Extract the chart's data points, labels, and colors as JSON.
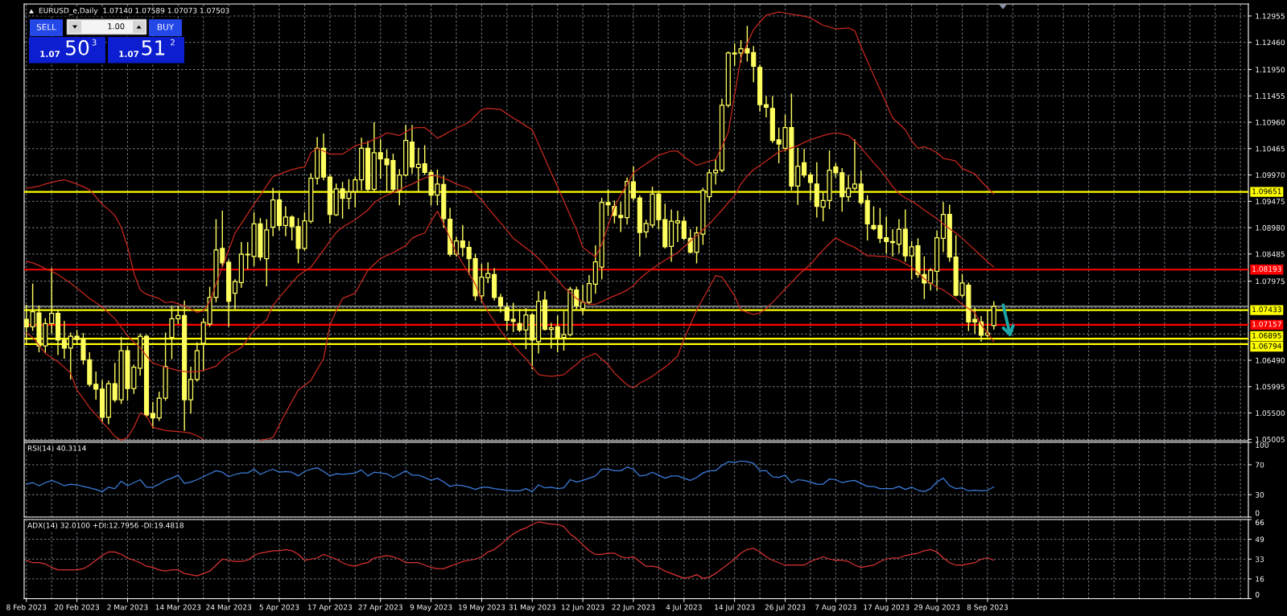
{
  "chart_data": [
    {
      "type": "candlestick",
      "title": "EURUSD_e,Daily  1.07140 1.07589 1.07073 1.07503",
      "color": "#ffff60",
      "categories": [
        null,
        null,
        null,
        null,
        null,
        null,
        null,
        null,
        null,
        null,
        null,
        null,
        null,
        null,
        null,
        null,
        null,
        null,
        null,
        null,
        null,
        null,
        null,
        null,
        null,
        null,
        null,
        null,
        null,
        null,
        null,
        null,
        null,
        null,
        null,
        null,
        null,
        null,
        null,
        null,
        null,
        null,
        null,
        null,
        null,
        null,
        null,
        null,
        null,
        null,
        null,
        null,
        null,
        null,
        null,
        null,
        null,
        null,
        null,
        null,
        null,
        null,
        null,
        null,
        null,
        null,
        null,
        null,
        null,
        null,
        null,
        null,
        null,
        null,
        null,
        null,
        null,
        null,
        null,
        null,
        null,
        null,
        null,
        null,
        null,
        null,
        null,
        null,
        null,
        null,
        null,
        null,
        null,
        null,
        null,
        null,
        null,
        null,
        null,
        null,
        null,
        null,
        null,
        null,
        null,
        null,
        null,
        null,
        null,
        null,
        null,
        null,
        null,
        null,
        null,
        null,
        null,
        null,
        null,
        null,
        null,
        null,
        null,
        null,
        null,
        null,
        null,
        null,
        null,
        null,
        null,
        null,
        null,
        null,
        null,
        null,
        null,
        null,
        null,
        null,
        null,
        null,
        null,
        null,
        null,
        null,
        null,
        null,
        null,
        null,
        null,
        null,
        null,
        null
      ],
      "ohlc": [
        [
          1.0726,
          1.0752,
          1.068,
          1.0712
        ],
        [
          1.0712,
          1.0792,
          1.0705,
          1.074
        ],
        [
          1.0738,
          1.0751,
          1.0665,
          1.0676
        ],
        [
          1.0676,
          1.0727,
          1.0664,
          1.0718
        ],
        [
          1.0718,
          1.0821,
          1.07,
          1.0737
        ],
        [
          1.0737,
          1.0743,
          1.066,
          1.0687
        ],
        [
          1.0687,
          1.0722,
          1.0653,
          1.0672
        ],
        [
          1.0672,
          1.07,
          1.0614,
          1.0694
        ],
        [
          1.0694,
          1.0705,
          1.068,
          1.0688
        ],
        [
          1.0688,
          1.0699,
          1.0642,
          1.065
        ],
        [
          1.065,
          1.0663,
          1.0601,
          1.0604
        ],
        [
          1.0604,
          1.0627,
          1.0576,
          1.0595
        ],
        [
          1.0595,
          1.0611,
          1.0533,
          1.0542
        ],
        [
          1.0542,
          1.061,
          1.053,
          1.0605
        ],
        [
          1.0605,
          1.0643,
          1.0571,
          1.0575
        ],
        [
          1.0575,
          1.0692,
          1.0568,
          1.0667
        ],
        [
          1.0667,
          1.0675,
          1.0574,
          1.0596
        ],
        [
          1.0596,
          1.064,
          1.0587,
          1.0636
        ],
        [
          1.0634,
          1.0698,
          1.0621,
          1.0694
        ],
        [
          1.0694,
          1.0696,
          1.0543,
          1.0546
        ],
        [
          1.0549,
          1.057,
          1.0522,
          1.0541
        ],
        [
          1.0541,
          1.0589,
          1.0536,
          1.0578
        ],
        [
          1.0578,
          1.07,
          1.0574,
          1.0637
        ],
        [
          1.0692,
          1.075,
          1.0652,
          1.0727
        ],
        [
          1.0727,
          1.075,
          1.0718,
          1.0733
        ],
        [
          1.0733,
          1.076,
          1.0518,
          1.0575
        ],
        [
          1.0575,
          1.0636,
          1.055,
          1.0613
        ],
        [
          1.0613,
          1.0682,
          1.061,
          1.0667
        ],
        [
          1.0681,
          1.0727,
          1.063,
          1.072
        ],
        [
          1.0717,
          1.0786,
          1.0713,
          1.0767
        ],
        [
          1.0767,
          1.0913,
          1.0759,
          1.0856
        ],
        [
          1.0859,
          1.0929,
          1.0826,
          1.0832
        ],
        [
          1.0833,
          1.0837,
          1.0713,
          1.076
        ],
        [
          1.0775,
          1.08,
          1.0746,
          1.0797
        ],
        [
          1.0795,
          1.087,
          1.0786,
          1.0848
        ],
        [
          1.0848,
          1.087,
          1.0821,
          1.0847
        ],
        [
          1.0844,
          1.0926,
          1.0827,
          1.0905
        ],
        [
          1.0905,
          1.0915,
          1.0837,
          1.0843
        ],
        [
          1.084,
          1.0913,
          1.0789,
          1.0894
        ],
        [
          1.0899,
          1.0972,
          1.0883,
          1.095
        ],
        [
          1.095,
          1.0963,
          1.0894,
          1.0902
        ],
        [
          1.0902,
          1.0937,
          1.0883,
          1.0918
        ],
        [
          1.0918,
          1.092,
          1.0875,
          1.09
        ],
        [
          1.09,
          1.0915,
          1.0832,
          1.0859
        ],
        [
          1.0859,
          1.0926,
          1.0856,
          1.0911
        ],
        [
          1.091,
          1.0999,
          1.0907,
          1.0991
        ],
        [
          1.0991,
          1.1067,
          1.098,
          1.1047
        ],
        [
          1.1047,
          1.1074,
          1.0988,
          1.0993
        ],
        [
          1.0993,
          1.0997,
          1.0907,
          1.0923
        ],
        [
          1.0922,
          1.098,
          1.0921,
          1.0971
        ],
        [
          1.0971,
          1.0983,
          1.0916,
          1.0953
        ],
        [
          1.0953,
          1.0988,
          1.0934,
          1.0965
        ],
        [
          1.0966,
          1.0993,
          1.0937,
          1.0988
        ],
        [
          1.0988,
          1.1066,
          1.0969,
          1.1047
        ],
        [
          1.1047,
          1.106,
          1.0966,
          1.097
        ],
        [
          1.097,
          1.1095,
          1.0966,
          1.1039
        ],
        [
          1.1039,
          1.1063,
          1.0991,
          1.1027
        ],
        [
          1.1027,
          1.1044,
          1.0966,
          1.1016
        ],
        [
          1.1024,
          1.1036,
          1.0966,
          1.097
        ],
        [
          1.0968,
          1.1007,
          1.0941,
          1.0997
        ],
        [
          1.0997,
          1.109,
          1.0995,
          1.1062
        ],
        [
          1.1059,
          1.109,
          1.1,
          1.1012
        ],
        [
          1.1011,
          1.1047,
          1.0966,
          1.1017
        ],
        [
          1.1018,
          1.1052,
          1.0998,
          1.1002
        ],
        [
          1.1002,
          1.1006,
          1.0941,
          1.0959
        ],
        [
          1.0959,
          1.1006,
          1.0941,
          1.098
        ],
        [
          1.0979,
          1.0995,
          1.0899,
          1.0915
        ],
        [
          1.0914,
          1.0934,
          1.0845,
          1.0848
        ],
        [
          1.0848,
          1.088,
          1.0845,
          1.0873
        ],
        [
          1.0873,
          1.0902,
          1.0845,
          1.0861
        ],
        [
          1.0861,
          1.0872,
          1.081,
          1.084
        ],
        [
          1.084,
          1.0848,
          1.0762,
          1.077
        ],
        [
          1.077,
          1.0829,
          1.0759,
          1.0805
        ],
        [
          1.0804,
          1.0832,
          1.0795,
          1.0812
        ],
        [
          1.081,
          1.0821,
          1.0762,
          1.0767
        ],
        [
          1.0767,
          1.0773,
          1.074,
          1.0751
        ],
        [
          1.0748,
          1.0756,
          1.0706,
          1.0724
        ],
        [
          1.0726,
          1.0756,
          1.0703,
          1.0722
        ],
        [
          1.0718,
          1.0744,
          1.0703,
          1.0706
        ],
        [
          1.0706,
          1.0746,
          1.0671,
          1.0734
        ],
        [
          1.0734,
          1.0737,
          1.0633,
          1.0687
        ],
        [
          1.0684,
          1.0778,
          1.0663,
          1.076
        ],
        [
          1.0762,
          1.0778,
          1.0706,
          1.0707
        ],
        [
          1.0707,
          1.0718,
          1.0672,
          1.071
        ],
        [
          1.0712,
          1.0732,
          1.0665,
          1.0692
        ],
        [
          1.0692,
          1.074,
          1.0668,
          1.0697
        ],
        [
          1.0697,
          1.0786,
          1.0695,
          1.0782
        ],
        [
          1.0781,
          1.0786,
          1.0746,
          1.0751
        ],
        [
          1.0746,
          1.079,
          1.0735,
          1.0758
        ],
        [
          1.0758,
          1.0808,
          1.0755,
          1.0793
        ],
        [
          1.0792,
          1.0864,
          1.0775,
          1.0834
        ],
        [
          1.0824,
          1.0953,
          1.0802,
          1.0945
        ],
        [
          1.0945,
          1.0969,
          1.0921,
          1.0941
        ],
        [
          1.0938,
          1.0948,
          1.0907,
          1.0921
        ],
        [
          1.0921,
          1.0945,
          1.0891,
          1.0917
        ],
        [
          1.0917,
          1.0991,
          1.0905,
          1.0985
        ],
        [
          1.0984,
          1.1012,
          1.095,
          1.0954
        ],
        [
          1.0954,
          1.0958,
          1.0845,
          1.0889
        ],
        [
          1.089,
          1.0912,
          1.088,
          1.0906
        ],
        [
          1.0903,
          1.0974,
          1.0899,
          1.0961
        ],
        [
          1.0961,
          1.0963,
          1.0896,
          1.0913
        ],
        [
          1.0913,
          1.0942,
          1.086,
          1.0862
        ],
        [
          1.0863,
          1.0931,
          1.0835,
          1.091
        ],
        [
          1.0907,
          1.0929,
          1.0872,
          1.0911
        ],
        [
          1.091,
          1.0918,
          1.0875,
          1.0878
        ],
        [
          1.0878,
          1.0894,
          1.0851,
          1.0852
        ],
        [
          1.0852,
          1.0899,
          1.0832,
          1.0888
        ],
        [
          1.0886,
          1.0972,
          1.0867,
          1.0968
        ],
        [
          1.0956,
          1.1007,
          1.0947,
          1.1001
        ],
        [
          1.1001,
          1.1026,
          1.098,
          1.1006
        ],
        [
          1.1006,
          1.1139,
          1.1003,
          1.1128
        ],
        [
          1.1128,
          1.1228,
          1.1125,
          1.1226
        ],
        [
          1.1224,
          1.1243,
          1.1203,
          1.1226
        ],
        [
          1.1226,
          1.1249,
          1.1209,
          1.1234
        ],
        [
          1.1234,
          1.1276,
          1.1211,
          1.1226
        ],
        [
          1.1227,
          1.1238,
          1.1172,
          1.1201
        ],
        [
          1.1199,
          1.1203,
          1.1117,
          1.1129
        ],
        [
          1.1129,
          1.1144,
          1.1106,
          1.1124
        ],
        [
          1.1122,
          1.1144,
          1.1058,
          1.1062
        ],
        [
          1.1063,
          1.1085,
          1.102,
          1.1055
        ],
        [
          1.1047,
          1.1109,
          1.1042,
          1.1086
        ],
        [
          1.1086,
          1.1149,
          1.0969,
          1.0976
        ],
        [
          1.0976,
          1.1047,
          1.0942,
          1.1013
        ],
        [
          1.102,
          1.1045,
          1.0993,
          1.0997
        ],
        [
          1.0997,
          1.1001,
          1.095,
          1.0983
        ],
        [
          1.098,
          1.102,
          1.0918,
          1.0938
        ],
        [
          1.0937,
          1.0963,
          1.0911,
          1.0949
        ],
        [
          1.0949,
          1.1042,
          1.0934,
          1.1006
        ],
        [
          1.1012,
          1.1018,
          1.0993,
          1.1001
        ],
        [
          1.1001,
          1.1009,
          1.0929,
          1.0956
        ],
        [
          1.0956,
          1.0996,
          1.0948,
          1.0972
        ],
        [
          1.0972,
          1.1063,
          1.0969,
          1.098
        ],
        [
          1.098,
          1.1004,
          1.0942,
          1.0945
        ],
        [
          1.0949,
          1.0958,
          1.0875,
          1.0905
        ],
        [
          1.0902,
          1.0937,
          1.0894,
          1.0896
        ],
        [
          1.0902,
          1.0934,
          1.087,
          1.0878
        ],
        [
          1.0879,
          1.0918,
          1.0851,
          1.0872
        ],
        [
          1.0872,
          1.0894,
          1.0845,
          1.087
        ],
        [
          1.0867,
          1.0913,
          1.0851,
          1.0895
        ],
        [
          1.0895,
          1.0931,
          1.0835,
          1.0845
        ],
        [
          1.0845,
          1.0872,
          1.0802,
          1.0862
        ],
        [
          1.0864,
          1.0877,
          1.0805,
          1.081
        ],
        [
          1.081,
          1.0843,
          1.0765,
          1.0794
        ],
        [
          1.0794,
          1.0821,
          1.0781,
          1.0818
        ],
        [
          1.0816,
          1.0891,
          1.0781,
          1.0879
        ],
        [
          1.0878,
          1.0945,
          1.0853,
          1.0923
        ],
        [
          1.0923,
          1.094,
          1.0835,
          1.0843
        ],
        [
          1.0843,
          1.0883,
          1.077,
          1.0771
        ],
        [
          1.0771,
          1.081,
          1.0768,
          1.0794
        ],
        [
          1.079,
          1.0794,
          1.0705,
          1.0721
        ],
        [
          1.0726,
          1.0747,
          1.07,
          1.0721
        ],
        [
          1.0721,
          1.0731,
          1.0685,
          1.0696
        ],
        [
          1.0696,
          1.0743,
          1.0693,
          1.07
        ],
        [
          1.0714,
          1.07589,
          1.07073,
          1.07503
        ]
      ],
      "series": [
        {
          "type": "line",
          "color": "#c8281e",
          "values": [
            1.0972,
            1.0974,
            1.0976,
            1.098,
            1.0983,
            1.0986,
            1.0988,
            1.0984,
            1.098,
            1.0975,
            1.0969,
            1.0956,
            1.0942,
            1.0932,
            1.0921,
            1.0899,
            1.0862,
            1.0813,
            1.0781,
            1.0773,
            1.0769,
            1.0765,
            1.0757,
            1.0759,
            1.0755,
            1.0751,
            1.0745,
            1.0739,
            1.0742,
            1.0759,
            1.0792,
            1.0824,
            1.0856,
            1.0888,
            1.0906,
            1.0924,
            1.0942,
            1.0959,
            1.0977,
            1.0994,
            1.0998,
            1.1003,
            1.1007,
            1.101,
            1.1012,
            1.1039,
            1.1047,
            1.1042,
            1.1036,
            1.1036,
            1.1036,
            1.1044,
            1.1052,
            1.1055,
            1.1058,
            1.1064,
            1.1069,
            1.1076,
            1.1074,
            1.1071,
            1.1078,
            1.1085,
            1.1086,
            1.1086,
            1.1077,
            1.1066,
            1.1072,
            1.1079,
            1.1085,
            1.109,
            1.1096,
            1.1108,
            1.112,
            1.1122,
            1.1121,
            1.112,
            1.1112,
            1.1104,
            1.1097,
            1.1089,
            1.1082,
            1.1055,
            1.1028,
            1.1001,
            1.0975,
            1.0948,
            1.0921,
            1.0894,
            1.0861,
            1.0852,
            1.0843,
            1.0867,
            1.0902,
            1.0937,
            1.0959,
            1.098,
            1.1001,
            1.101,
            1.1018,
            1.1026,
            1.1034,
            1.1038,
            1.1042,
            1.1042,
            1.1031,
            1.1023,
            1.1015,
            1.1019,
            1.1023,
            1.1026,
            1.105,
            1.1077,
            1.1147,
            1.1217,
            1.1244,
            1.127,
            1.1284,
            1.1297,
            1.13,
            1.1303,
            1.1301,
            1.1299,
            1.1297,
            1.1295,
            1.1292,
            1.1285,
            1.1278,
            1.1275,
            1.1271,
            1.1272,
            1.1273,
            1.1268,
            1.1238,
            1.1211,
            1.1184,
            1.1158,
            1.1131,
            1.1104,
            1.1093,
            1.1082,
            1.1061,
            1.1047,
            1.105,
            1.1045,
            1.1039,
            1.1028,
            1.1026,
            1.1023,
            1.1009,
            1.1004,
            1.0999,
            1.0985,
            1.0973,
            1.0961
          ]
        },
        {
          "type": "line",
          "color": "#c8281e",
          "values": [
            1.0835,
            1.0832,
            1.0827,
            1.0821,
            1.0816,
            1.081,
            1.0802,
            1.0794,
            1.0784,
            1.0775,
            1.0765,
            1.0757,
            1.0749,
            1.0738,
            1.0727,
            1.0711,
            1.0695,
            1.0683,
            1.0673,
            1.0657,
            1.0644,
            1.064,
            1.0636,
            1.0633,
            1.063,
            1.0628,
            1.0627,
            1.0628,
            1.063,
            1.0634,
            1.0638,
            1.065,
            1.066,
            1.0666,
            1.0673,
            1.0689,
            1.0705,
            1.0715,
            1.0725,
            1.0752,
            1.0767,
            1.0781,
            1.0795,
            1.0808,
            1.0816,
            1.0824,
            1.084,
            1.0856,
            1.0873,
            1.0889,
            1.0899,
            1.0906,
            1.0913,
            1.0922,
            1.0931,
            1.0945,
            1.0953,
            1.0959,
            1.0964,
            1.0969,
            1.0975,
            1.098,
            1.0986,
            1.0991,
            1.0996,
            1.0995,
            1.0991,
            1.0986,
            1.098,
            1.0976,
            1.0972,
            1.0962,
            1.095,
            1.0935,
            1.0921,
            1.0907,
            1.0893,
            1.0878,
            1.0869,
            1.086,
            1.0851,
            1.084,
            1.0827,
            1.0813,
            1.08,
            1.0786,
            1.0776,
            1.0765,
            1.0758,
            1.0754,
            1.0754,
            1.0759,
            1.0765,
            1.077,
            1.0775,
            1.0781,
            1.0789,
            1.0802,
            1.0812,
            1.0821,
            1.0829,
            1.0837,
            1.0844,
            1.0851,
            1.0862,
            1.0873,
            1.0883,
            1.0894,
            1.0905,
            1.0918,
            1.0931,
            1.0945,
            1.0958,
            1.098,
            1.0995,
            1.1007,
            1.1015,
            1.1023,
            1.1032,
            1.104,
            1.1044,
            1.1048,
            1.1052,
            1.1058,
            1.1063,
            1.1067,
            1.1071,
            1.1074,
            1.1076,
            1.1074,
            1.1071,
            1.1061,
            1.1048,
            1.1034,
            1.102,
            1.1007,
            1.0992,
            1.0975,
            1.0962,
            1.0954,
            1.0948,
            1.094,
            1.0931,
            1.0923,
            1.0915,
            1.0905,
            1.0896,
            1.0888,
            1.0878,
            1.0867,
            1.0856,
            1.0845,
            1.0834,
            1.0824
          ]
        },
        {
          "type": "line",
          "color": "#c8281e",
          "values": [
            1.07,
            1.0692,
            1.0677,
            1.0662,
            1.0654,
            1.0646,
            1.0636,
            1.0625,
            1.0593,
            1.0577,
            1.056,
            1.0547,
            1.0533,
            1.052,
            1.0506,
            1.0499,
            1.0504,
            1.0523,
            1.055,
            1.0544,
            1.0523,
            1.052,
            1.0517,
            1.0516,
            1.0515,
            1.0514,
            1.0512,
            1.0507,
            1.0501,
            null,
            null,
            null,
            null,
            null,
            null,
            null,
            null,
            1.0499,
            1.0501,
            1.0504,
            1.0527,
            1.055,
            1.0572,
            1.0593,
            1.0602,
            1.0611,
            1.0632,
            1.0652,
            1.0715,
            1.0742,
            1.0765,
            1.077,
            1.0775,
            1.0797,
            1.0818,
            1.0829,
            1.084,
            1.0846,
            1.0851,
            1.0858,
            1.0864,
            1.0878,
            1.0884,
            1.0888,
            1.091,
            1.0929,
            1.0905,
            1.0878,
            1.0851,
            1.0831,
            1.0812,
            1.0792,
            1.0762,
            1.074,
            1.0722,
            1.0705,
            1.0689,
            1.0677,
            1.0664,
            1.0652,
            1.0637,
            1.0622,
            1.062,
            1.0619,
            1.062,
            1.0622,
            1.0632,
            1.0641,
            1.0652,
            1.0657,
            1.0662,
            1.0651,
            1.0641,
            1.0625,
            1.0614,
            1.0603,
            1.0597,
            1.0606,
            1.0612,
            1.0619,
            1.0628,
            1.0636,
            1.0646,
            1.0657,
            1.0689,
            1.0716,
            1.0743,
            1.0765,
            1.0786,
            1.0808,
            1.0805,
            1.0788,
            1.077,
            1.0743,
            1.0739,
            1.0735,
            1.0738,
            1.0746,
            1.0758,
            1.077,
            1.0783,
            1.0795,
            1.0808,
            1.0819,
            1.0829,
            1.0843,
            1.0856,
            1.0868,
            1.0879,
            1.0872,
            1.0866,
            1.0861,
            1.0853,
            1.0845,
            1.0845,
            1.0844,
            1.0844,
            1.084,
            1.0837,
            1.083,
            1.0824,
            1.0813,
            1.0802,
            1.0794,
            1.0786,
            1.0781,
            1.0773,
            1.0764,
            1.0754,
            1.0746,
            1.0738,
            1.0716,
            1.07,
            1.0684
          ]
        }
      ],
      "ylim": [
        1.0498,
        1.1318
      ],
      "yticks": [
        {
          "value": 1.05005,
          "label": "1.05005"
        },
        {
          "value": 1.055,
          "label": "1.05500"
        },
        {
          "value": 1.05995,
          "label": "1.05995"
        },
        {
          "value": 1.0649,
          "label": "1.06490"
        },
        {
          "value": 1.06985,
          "label": null
        },
        {
          "value": 1.0748,
          "label": null
        },
        {
          "value": 1.07975,
          "label": "1.07975"
        },
        {
          "value": 1.08485,
          "label": "1.08485"
        },
        {
          "value": 1.0898,
          "label": "1.08980"
        },
        {
          "value": 1.09475,
          "label": "1.09475"
        },
        {
          "value": 1.0997,
          "label": "1.09970"
        },
        {
          "value": 1.10465,
          "label": "1.10465"
        },
        {
          "value": 1.1096,
          "label": "1.10960"
        },
        {
          "value": 1.11455,
          "label": "1.11455"
        },
        {
          "value": 1.1195,
          "label": "1.11950"
        },
        {
          "value": 1.1246,
          "label": "1.12460"
        },
        {
          "value": 1.12955,
          "label": "1.12955"
        }
      ],
      "grid": true,
      "tick_labels": "y",
      "ref_lines": [
        {
          "axis": "y",
          "value": 1.09651,
          "label": "1.09651",
          "color": "#ffff00"
        },
        {
          "axis": "y",
          "value": 1.08193,
          "label": "1.08193",
          "color": "#ff0000"
        },
        {
          "axis": "y",
          "value": 1.07503,
          "color": "#b4b4b4"
        },
        {
          "axis": "y",
          "value": 1.07433,
          "label": "1.07433",
          "color": "#ffff00"
        },
        {
          "axis": "y",
          "value": 1.07157,
          "label": "1.07157",
          "color": "#ff0000"
        },
        {
          "axis": "y",
          "value": 1.06895,
          "label": "1.06895",
          "color": "#ffff00"
        },
        {
          "axis": "y",
          "value": 1.06794,
          "label": "1.06794",
          "color": "#ffff00"
        }
      ],
      "annotations": [
        "SELL",
        "1.00",
        "BUY",
        "1.07",
        "50",
        "3",
        "1.07",
        "51",
        "2"
      ]
    },
    {
      "type": "line",
      "title": "RSI(14) 40.3114",
      "categories": [
        null,
        null,
        null,
        null,
        null,
        null,
        null,
        null,
        null,
        null,
        null,
        null,
        null,
        null,
        null,
        null,
        null,
        null,
        null,
        null,
        null,
        null,
        null,
        null,
        null,
        null,
        null,
        null,
        null,
        null,
        null,
        null,
        null,
        null,
        null,
        null,
        null,
        null,
        null,
        null,
        null,
        null,
        null,
        null,
        null,
        null,
        null,
        null,
        null,
        null,
        null,
        null,
        null,
        null,
        null,
        null,
        null,
        null,
        null,
        null,
        null,
        null,
        null,
        null,
        null,
        null,
        null,
        null,
        null,
        null,
        null,
        null,
        null,
        null,
        null,
        null,
        null,
        null,
        null,
        null,
        null,
        null,
        null,
        null,
        null,
        null,
        null,
        null,
        null,
        null,
        null,
        null,
        null,
        null,
        null,
        null,
        null,
        null,
        null,
        null,
        null,
        null,
        null,
        null,
        null,
        null,
        null,
        null,
        null,
        null,
        null,
        null,
        null,
        null,
        null,
        null,
        null,
        null,
        null,
        null,
        null,
        null,
        null,
        null,
        null,
        null,
        null,
        null,
        null,
        null,
        null,
        null,
        null,
        null,
        null,
        null,
        null,
        null,
        null,
        null,
        null,
        null,
        null,
        null,
        null,
        null,
        null,
        null,
        null,
        null,
        null,
        null,
        null,
        null
      ],
      "series": [
        {
          "color": "#3c7ddc",
          "values": [
            44,
            46,
            42,
            46,
            49,
            46,
            42,
            44,
            43,
            41,
            39,
            37,
            34,
            40,
            38,
            48,
            42,
            46,
            50,
            40,
            40,
            44,
            49,
            52,
            56,
            45,
            47,
            50,
            54,
            58,
            62,
            60,
            54,
            57,
            59,
            59,
            64,
            57,
            61,
            64,
            60,
            61,
            60,
            55,
            61,
            64,
            66,
            61,
            55,
            58,
            57,
            58,
            59,
            63,
            55,
            60,
            59,
            58,
            53,
            57,
            62,
            56,
            56,
            53,
            49,
            52,
            47,
            41,
            43,
            42,
            40,
            37,
            40,
            40,
            38,
            37,
            36,
            35,
            35,
            38,
            34,
            43,
            39,
            40,
            38,
            39,
            50,
            47,
            49,
            52,
            55,
            64,
            64,
            62,
            62,
            67,
            64,
            55,
            56,
            60,
            56,
            52,
            55,
            55,
            52,
            49,
            53,
            59,
            62,
            62,
            69,
            74,
            73,
            75,
            74,
            72,
            62,
            62,
            54,
            53,
            56,
            46,
            50,
            49,
            47,
            44,
            44,
            51,
            50,
            46,
            48,
            49,
            45,
            41,
            41,
            38,
            38,
            38,
            41,
            37,
            40,
            36,
            34,
            38,
            47,
            52,
            42,
            38,
            39,
            35,
            36,
            35,
            36,
            40.3114
          ]
        }
      ],
      "ylim": [
        0,
        100
      ],
      "yticks": [
        0,
        30,
        70,
        100
      ],
      "grid": true,
      "tick_labels": "y"
    },
    {
      "type": "line",
      "title": "ADX(14) 32.0100 +DI:12.7956 -DI:19.4818",
      "categories": [
        "8 Feb 2023",
        null,
        null,
        null,
        null,
        null,
        null,
        null,
        "20 Feb 2023",
        null,
        null,
        null,
        null,
        null,
        null,
        null,
        "2 Mar 2023",
        null,
        null,
        null,
        null,
        null,
        null,
        null,
        "14 Mar 2023",
        null,
        null,
        null,
        null,
        null,
        null,
        null,
        "24 Mar 2023",
        null,
        null,
        null,
        null,
        null,
        null,
        null,
        "5 Apr 2023",
        null,
        null,
        null,
        null,
        null,
        null,
        null,
        "17 Apr 2023",
        null,
        null,
        null,
        null,
        null,
        null,
        null,
        "27 Apr 2023",
        null,
        null,
        null,
        null,
        null,
        null,
        null,
        "9 May 2023",
        null,
        null,
        null,
        null,
        null,
        null,
        null,
        "19 May 2023",
        null,
        null,
        null,
        null,
        null,
        null,
        null,
        "31 May 2023",
        null,
        null,
        null,
        null,
        null,
        null,
        null,
        "12 Jun 2023",
        null,
        null,
        null,
        null,
        null,
        null,
        null,
        "22 Jun 2023",
        null,
        null,
        null,
        null,
        null,
        null,
        null,
        "4 Jul 2023",
        null,
        null,
        null,
        null,
        null,
        null,
        null,
        "14 Jul 2023",
        null,
        null,
        null,
        null,
        null,
        null,
        null,
        "26 Jul 2023",
        null,
        null,
        null,
        null,
        null,
        null,
        null,
        "7 Aug 2023",
        null,
        null,
        null,
        null,
        null,
        null,
        null,
        "17 Aug 2023",
        null,
        null,
        null,
        null,
        null,
        null,
        null,
        "29 Aug 2023",
        null,
        null,
        null,
        null,
        null,
        null,
        null,
        "8 Sep 2023",
        null
      ],
      "series": [
        {
          "color": "#dc3232",
          "values": [
            32,
            30,
            30,
            29,
            26,
            24,
            24,
            24,
            24,
            25,
            28,
            32,
            36,
            39,
            39,
            37,
            34,
            32,
            30,
            27,
            26,
            24,
            23,
            24,
            24,
            21,
            20,
            19,
            21,
            23,
            28,
            33,
            32,
            31,
            31,
            32,
            36,
            38,
            39,
            40,
            40,
            41,
            40,
            37,
            32,
            33,
            34,
            37,
            35,
            33,
            30,
            28,
            27,
            29,
            30,
            34,
            35,
            36,
            35,
            33,
            30,
            30,
            30,
            28,
            26,
            25,
            25,
            27,
            29,
            31,
            32,
            33,
            35,
            39,
            41,
            45,
            50,
            54,
            57,
            59,
            62,
            64,
            63,
            62,
            62,
            60,
            54,
            50,
            45,
            40,
            37,
            37,
            38,
            38,
            35,
            34,
            35,
            31,
            27,
            27,
            26,
            23,
            21,
            19,
            17,
            18,
            20,
            17,
            18,
            21,
            25,
            29,
            33,
            38,
            41,
            42,
            39,
            35,
            32,
            30,
            28,
            28,
            28,
            28,
            31,
            33,
            35,
            33,
            32,
            32,
            31,
            28,
            26,
            27,
            28,
            31,
            33,
            34,
            34,
            36,
            37,
            38,
            40,
            41,
            39,
            34,
            30,
            28,
            28,
            29,
            30,
            33,
            34,
            32.01
          ]
        }
      ],
      "ylim": [
        0,
        66
      ],
      "yticks": [
        0,
        {
          "value": 16.5,
          "label": "16"
        },
        33,
        {
          "value": 49.5,
          "label": "49"
        },
        66
      ],
      "grid": true
    }
  ]
}
